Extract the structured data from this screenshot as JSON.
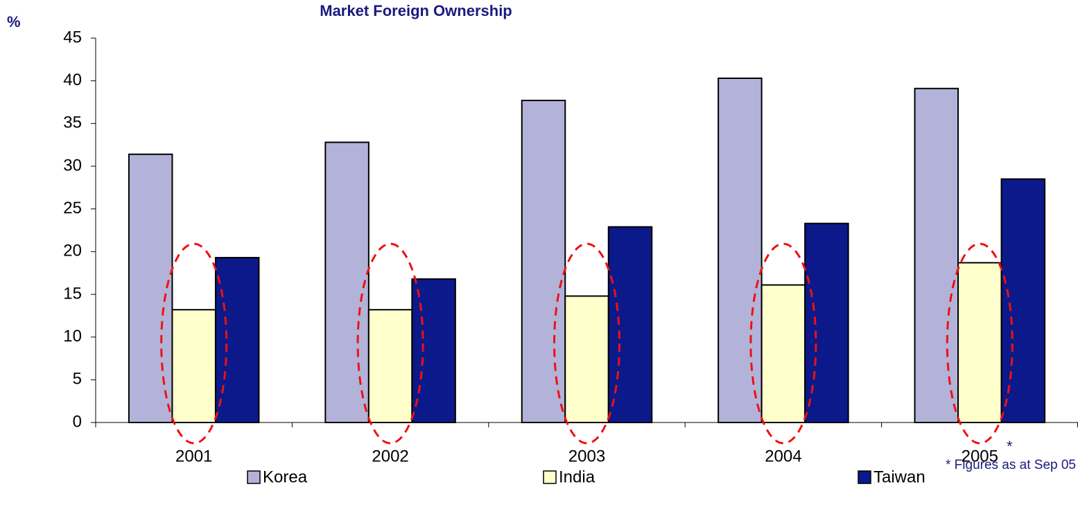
{
  "chart_data": {
    "type": "bar",
    "title": "Market Foreign Ownership",
    "y_label": "%",
    "categories": [
      "2001",
      "2002",
      "2003",
      "2004",
      "2005"
    ],
    "series": [
      {
        "name": "Korea",
        "color": "#b3b3d9",
        "values": [
          31.4,
          32.8,
          37.7,
          40.3,
          39.1
        ]
      },
      {
        "name": "India",
        "color": "#ffffcc",
        "values": [
          13.2,
          13.2,
          14.8,
          16.1,
          18.7
        ]
      },
      {
        "name": "Taiwan",
        "color": "#0c198a",
        "values": [
          19.3,
          16.8,
          22.9,
          23.3,
          28.5
        ]
      }
    ],
    "ylim": [
      0,
      45
    ],
    "yticks": [
      0,
      5,
      10,
      15,
      20,
      25,
      30,
      35,
      40,
      45
    ],
    "annotations": [
      "*",
      "* Figures as at Sep 05"
    ],
    "legend": "bottom"
  }
}
